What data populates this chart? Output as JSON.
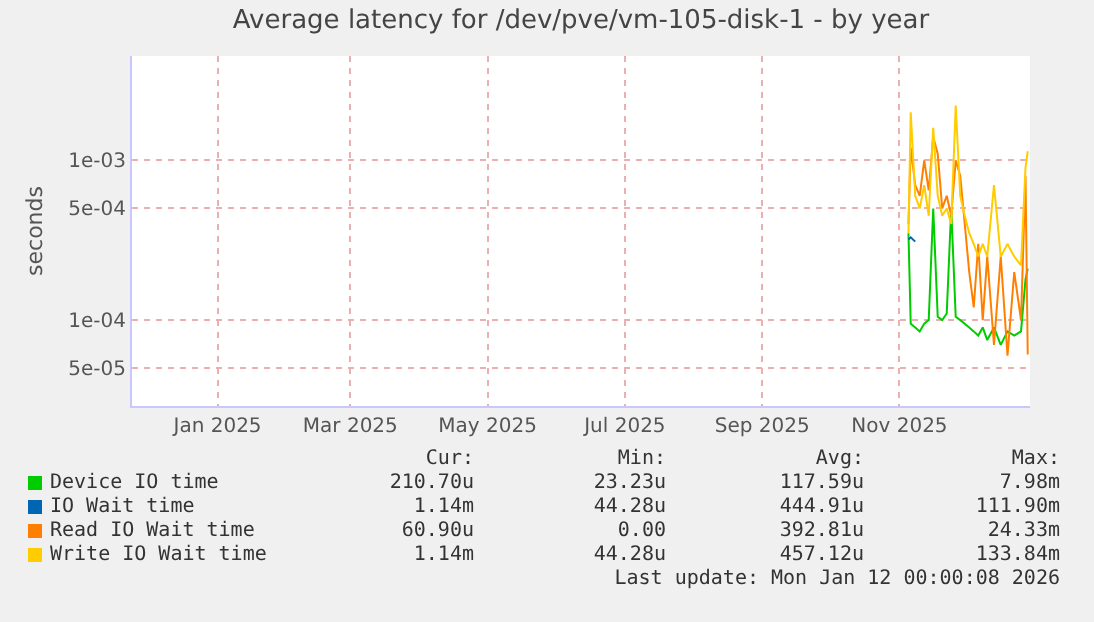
{
  "chart_data": {
    "type": "line",
    "title": "Average latency for /dev/pve/vm-105-disk-1 - by year",
    "ylabel": "seconds",
    "x": [
      "2025-11-19",
      "2025-11-20",
      "2025-11-22",
      "2025-11-24",
      "2025-11-26",
      "2025-11-28",
      "2025-11-30",
      "2025-12-02",
      "2025-12-04",
      "2025-12-06",
      "2025-12-08",
      "2025-12-10",
      "2025-12-12",
      "2025-12-14",
      "2025-12-16",
      "2025-12-18",
      "2025-12-20",
      "2025-12-22",
      "2025-12-24",
      "2025-12-27",
      "2025-12-30",
      "2026-01-02",
      "2026-01-05",
      "2026-01-08",
      "2026-01-10",
      "2026-01-11"
    ],
    "series": [
      {
        "name": "Device IO time",
        "color": "#00cc00",
        "values": [
          0.00035,
          9.5e-05,
          9e-05,
          8.5e-05,
          9.5e-05,
          0.0001,
          0.0005,
          0.000105,
          0.0001,
          0.00011,
          0.0005,
          0.000105,
          0.0001,
          9.5e-05,
          9e-05,
          8.5e-05,
          8e-05,
          9e-05,
          7.5e-05,
          9e-05,
          7e-05,
          8.5e-05,
          8e-05,
          8.5e-05,
          0.00018,
          0.00021
        ]
      },
      {
        "name": "IO Wait time",
        "color": "#0066b3",
        "values": [
          0.00032,
          0.00033,
          0.00031,
          null,
          null,
          null,
          null,
          null,
          null,
          null,
          null,
          null,
          null,
          null,
          null,
          null,
          null,
          null,
          null,
          null,
          null,
          null,
          null,
          null,
          null,
          null
        ]
      },
      {
        "name": "Read IO Wait time",
        "color": "#ff8000",
        "values": [
          0.0004,
          0.0012,
          0.0007,
          0.0006,
          0.001,
          0.00065,
          0.0014,
          0.0011,
          0.0005,
          0.0006,
          0.00045,
          0.001,
          0.0008,
          0.0004,
          0.0002,
          0.00012,
          0.0003,
          0.0001,
          0.00025,
          7e-05,
          0.00025,
          6e-05,
          0.0002,
          0.0001,
          0.0008,
          6.09e-05
        ]
      },
      {
        "name": "Write IO Wait time",
        "color": "#ffcc00",
        "values": [
          0.00035,
          0.002,
          0.0006,
          0.0005,
          0.0007,
          0.00045,
          0.0016,
          0.0006,
          0.00045,
          0.0005,
          0.0004,
          0.0022,
          0.0006,
          0.00045,
          0.00035,
          0.0003,
          0.00025,
          0.0003,
          0.00025,
          0.0007,
          0.00025,
          0.0003,
          0.00025,
          0.00022,
          0.0009,
          0.00114
        ]
      }
    ],
    "log": true,
    "xlim": [
      "2024-12-09",
      "2026-01-12"
    ],
    "xticks": [
      {
        "value": "2025-01-16",
        "label": "Jan 2025"
      },
      {
        "value": "2025-03-16",
        "label": "Mar 2025"
      },
      {
        "value": "2025-05-16",
        "label": "May 2025"
      },
      {
        "value": "2025-07-16",
        "label": "Jul 2025"
      },
      {
        "value": "2025-09-15",
        "label": "Sep 2025"
      },
      {
        "value": "2025-11-15",
        "label": "Nov 2025"
      }
    ],
    "ylim": [
      2.9e-05,
      0.0045
    ],
    "yticks": [
      {
        "value": 5e-05,
        "label": "5e-05"
      },
      {
        "value": 0.0001,
        "label": "1e-04"
      },
      {
        "value": 0.0005,
        "label": "5e-04"
      },
      {
        "value": 0.001,
        "label": "1e-03"
      }
    ],
    "grid": true,
    "legend": "bottom",
    "annotations": [
      "Cur:",
      "Min:",
      "Avg:",
      "Max:",
      "210.70u",
      "23.23u",
      "117.59u",
      "7.98m",
      "1.14m",
      "44.28u",
      "444.91u",
      "111.90m",
      "60.90u",
      "0.00",
      "392.81u",
      "24.33m",
      "1.14m",
      "44.28u",
      "457.12u",
      "133.84m",
      "Last update: Mon Jan 12 00:00:08 2026"
    ]
  }
}
